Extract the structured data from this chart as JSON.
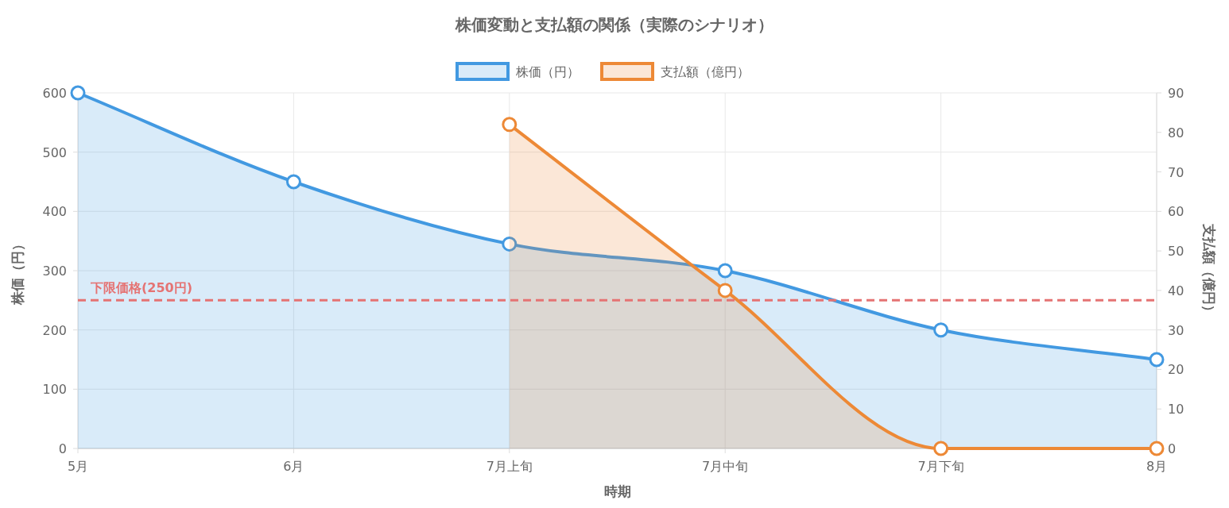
{
  "chart_data": {
    "type": "area",
    "title": "株価変動と支払額の関係（実際のシナリオ）",
    "xlabel": "時期",
    "ylabel": "株価（円）",
    "y2label": "支払額（億円）",
    "categories": [
      "5月",
      "6月",
      "7月上旬",
      "7月中旬",
      "7月下旬",
      "8月"
    ],
    "series": [
      {
        "name": "株価（円）",
        "color": "#4299e1",
        "values": [
          600,
          450,
          345,
          300,
          200,
          150
        ]
      },
      {
        "name": "支払額（億円）",
        "color": "#ed8936",
        "axis": "y2",
        "values": [
          null,
          null,
          82,
          40,
          0,
          0
        ]
      }
    ],
    "ylim": [
      0,
      600
    ],
    "yticks": [
      0,
      100,
      200,
      300,
      400,
      500,
      600
    ],
    "y2lim": [
      0,
      90
    ],
    "y2ticks": [
      0,
      10,
      20,
      30,
      40,
      50,
      60,
      70,
      80,
      90
    ],
    "ref_lines": [
      {
        "axis": "y",
        "value": 250,
        "label": "下限価格(250円)",
        "color": "#e57373",
        "line_style": "dashed"
      }
    ],
    "grid": true,
    "legend": "top",
    "marker": "circle",
    "line_style": "solid"
  }
}
